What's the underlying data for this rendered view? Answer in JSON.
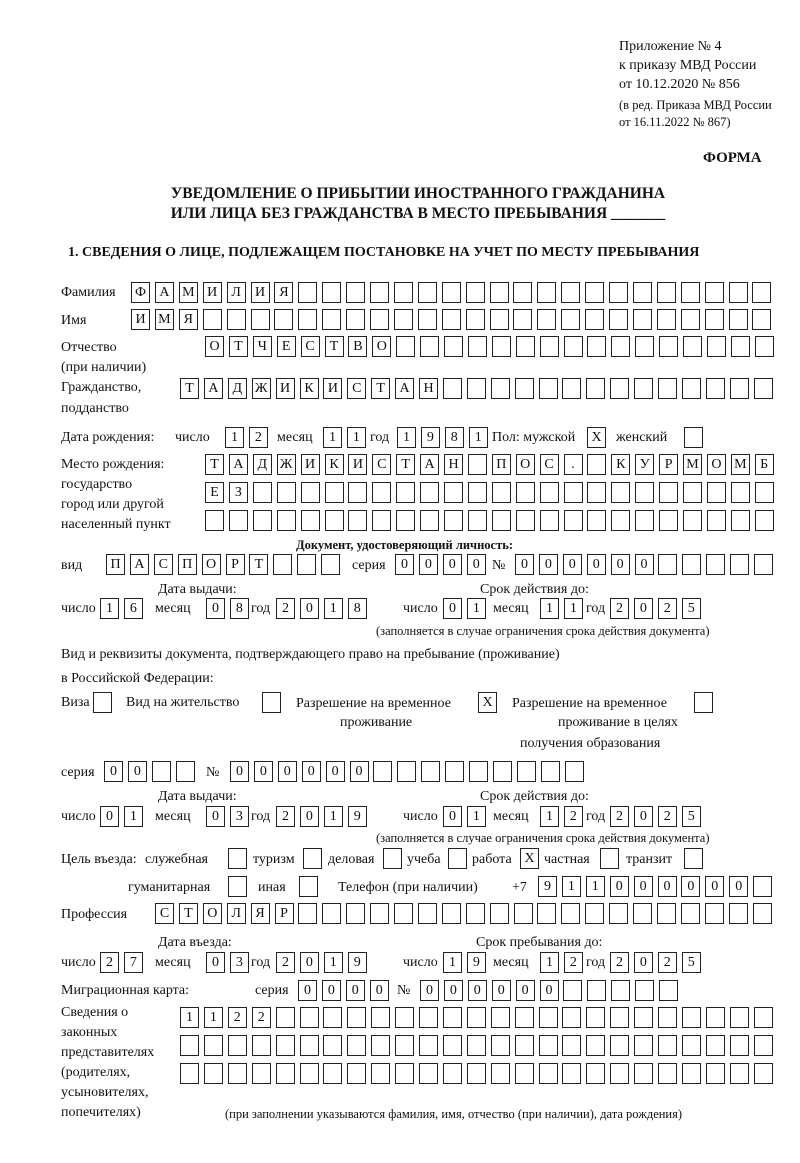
{
  "header": {
    "appendix": [
      "Приложение № 4",
      "к приказу МВД России",
      "от 10.12.2020 № 856"
    ],
    "revision": [
      "(в ред. Приказа МВД России",
      "от 16.11.2022 № 867)"
    ],
    "form_label": "ФОРМА",
    "title_line1": "УВЕДОМЛЕНИЕ О ПРИБЫТИИ ИНОСТРАННОГО ГРАЖДАНИНА",
    "title_line2": "ИЛИ ЛИЦА БЕЗ ГРАЖДАНСТВА В МЕСТО ПРЕБЫВАНИЯ _______",
    "section1": "1. СВЕДЕНИЯ О ЛИЦЕ, ПОДЛЕЖАЩЕМ ПОСТАНОВКЕ НА УЧЕТ ПО МЕСТУ ПРЕБЫВАНИЯ"
  },
  "person": {
    "surname": {
      "label": "Фамилия",
      "value": "ФАМИЛИЯ"
    },
    "name": {
      "label": "Имя",
      "value": "ИМЯ"
    },
    "patronymic": {
      "label": "Отчество",
      "label2": "(при наличии)",
      "value": "ОТЧЕСТВО"
    },
    "citizenship": {
      "label": "Гражданство,",
      "label2": "подданство",
      "value": "ТАДЖИКИСТАН"
    },
    "birth_date": {
      "label": "Дата рождения:",
      "day_label": "число",
      "day": "12",
      "month_label": "месяц",
      "month": "11",
      "year_label": "год",
      "year": "1981"
    },
    "sex": {
      "label": "Пол: мужской",
      "male": "X",
      "female_label": "женский",
      "female": ""
    },
    "birth_place": {
      "labels": [
        "Место рождения:",
        "государство",
        "город или другой",
        "населенный пункт"
      ],
      "line1": "ТАДЖИКИСТАН ПОС. КУРМОМБ",
      "line2": "ЕЗ",
      "line3": ""
    }
  },
  "id_document": {
    "heading": "Документ, удостоверяющий личность:",
    "type_label": "вид",
    "type": "ПАСПОРТ",
    "series_label": "серия",
    "series": "0000",
    "number_label": "№",
    "number": "000000",
    "issue": {
      "label": "Дата выдачи:",
      "day_label": "число",
      "day": "16",
      "month_label": "месяц",
      "month": "08",
      "year_label": "год",
      "year": "2018"
    },
    "valid": {
      "label": "Срок действия до:",
      "day_label": "число",
      "day": "01",
      "month_label": "месяц",
      "month": "11",
      "year_label": "год",
      "year": "2025"
    },
    "note": "(заполняется в случае ограничения срока действия документа)"
  },
  "stay_document": {
    "heading1": "Вид и реквизиты документа, подтверждающего право на пребывание (проживание)",
    "heading2": "в Российской Федерации:",
    "visa_label": "Виза",
    "visa": "",
    "residence_label": "Вид на жительство",
    "residence": "",
    "temp_permit_label": [
      "Разрешение на временное",
      "проживание"
    ],
    "temp_permit": "X",
    "edu_permit_label": [
      "Разрешение на временное",
      "проживание в целях",
      "получения образования"
    ],
    "edu_permit": "",
    "series_label": "серия",
    "series": "00",
    "number_label": "№",
    "number": "000000",
    "issue": {
      "label": "Дата выдачи:",
      "day_label": "число",
      "day": "01",
      "month_label": "месяц",
      "month": "03",
      "year_label": "год",
      "year": "2019"
    },
    "valid": {
      "label": "Срок действия до:",
      "day_label": "число",
      "day": "01",
      "month_label": "месяц",
      "month": "12",
      "year_label": "год",
      "year": "2025"
    },
    "note": "(заполняется в случае ограничения срока действия документа)"
  },
  "purpose": {
    "label": "Цель въезда:",
    "options": [
      {
        "label": "служебная",
        "value": ""
      },
      {
        "label": "туризм",
        "value": ""
      },
      {
        "label": "деловая",
        "value": ""
      },
      {
        "label": "учеба",
        "value": ""
      },
      {
        "label": "работа",
        "value": "X"
      },
      {
        "label": "частная",
        "value": ""
      },
      {
        "label": "транзит",
        "value": ""
      },
      {
        "label": "гуманитарная",
        "value": ""
      },
      {
        "label": "иная",
        "value": ""
      }
    ]
  },
  "phone": {
    "label": "Телефон (при наличии)",
    "prefix": "+7",
    "value": "911000000"
  },
  "profession": {
    "label": "Профессия",
    "value": "СТОЛЯР"
  },
  "entry": {
    "entry_date": {
      "label": "Дата въезда:",
      "day_label": "число",
      "day": "27",
      "month_label": "месяц",
      "month": "03",
      "year_label": "год",
      "year": "2019"
    },
    "stay_until": {
      "label": "Срок пребывания до:",
      "day_label": "число",
      "day": "19",
      "month_label": "месяц",
      "month": "12",
      "year_label": "год",
      "year": "2025"
    }
  },
  "migration_card": {
    "label": "Миграционная карта:",
    "series_label": "серия",
    "series": "0000",
    "number_label": "№",
    "number": "000000"
  },
  "representatives": {
    "labels": [
      "Сведения о",
      "законных",
      "представителях",
      "(родителях,",
      "усыновителях,",
      "попечителях)"
    ],
    "line1": "1122",
    "line2": "",
    "line3": "",
    "note": "(при заполнении указываются фамилия, имя, отчество (при наличии), дата рождения)"
  }
}
